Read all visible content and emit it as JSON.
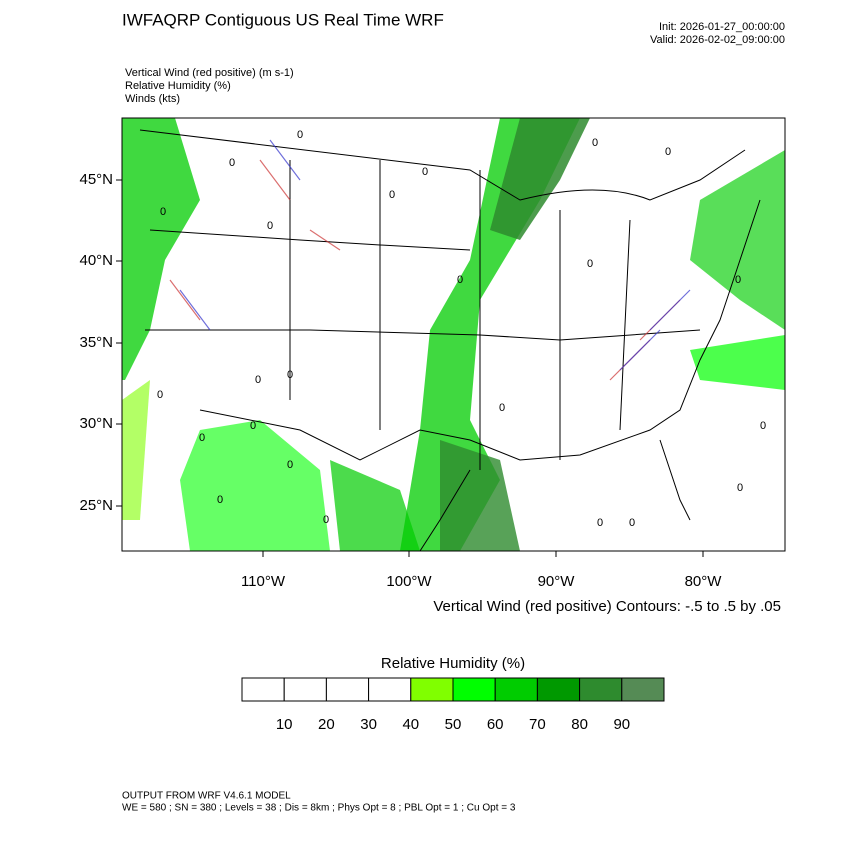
{
  "header": {
    "title": "IWFAQRP Contiguous US Real Time WRF",
    "init": "Init: 2026-01-27_00:00:00",
    "valid": "Valid: 2026-02-02_09:00:00"
  },
  "fields": [
    "Vertical Wind (red positive)   (m s-1)",
    "Relative Humidity   (%)",
    "Winds   (kts)"
  ],
  "map": {
    "lat_labels": [
      "45°N",
      "40°N",
      "35°N",
      "30°N",
      "25°N"
    ],
    "lon_labels": [
      "110°W",
      "100°W",
      "90°W",
      "80°W"
    ],
    "contour_label": "0",
    "contour_note": "Vertical Wind (red positive) Contours: -.5 to .5 by .05"
  },
  "colorbar": {
    "title": "Relative Humidity  (%)",
    "labels": [
      10,
      20,
      30,
      40,
      50,
      60,
      70,
      80,
      90
    ],
    "colors": [
      "#ffffff",
      "#ffffff",
      "#ffffff",
      "#ffffff",
      "#80ff00",
      "#00ff00",
      "#00cc00",
      "#009900",
      "#2e8b2e",
      "#558b55"
    ]
  },
  "footer": [
    "OUTPUT FROM WRF V4.6.1 MODEL",
    "WE = 580 ; SN = 380 ; Levels = 38 ; Dis = 8km ; Phys Opt = 8 ; PBL Opt = 1 ; Cu Opt = 3"
  ]
}
